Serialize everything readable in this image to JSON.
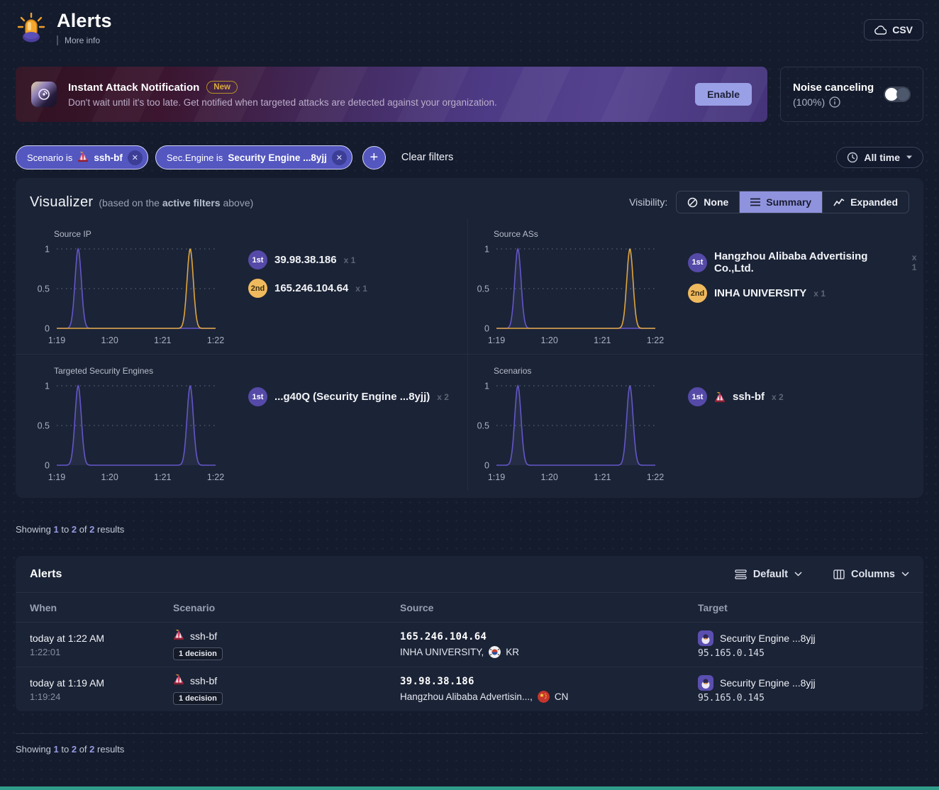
{
  "header": {
    "title": "Alerts",
    "more_info": "More info",
    "csv_button": "CSV"
  },
  "banner": {
    "title": "Instant Attack Notification",
    "badge": "New",
    "description": "Don't wait until it's too late. Get notified when targeted attacks are detected against your organization.",
    "enable_button": "Enable"
  },
  "noise_canceling": {
    "label": "Noise canceling",
    "value": "(100%)",
    "toggle_state": "off"
  },
  "filters": {
    "chips": [
      {
        "prefix": "Scenario is",
        "value": "ssh-bf",
        "scenario_emoji": "🎪",
        "remove": "✕"
      },
      {
        "prefix": "Sec.Engine is",
        "value": "Security Engine ...8yjj",
        "remove": "✕"
      }
    ],
    "add_button": "+",
    "clear_label": "Clear filters",
    "time_range": "All time"
  },
  "visualizer": {
    "title": "Visualizer",
    "subtitle_prefix": "(based on the ",
    "subtitle_bold": "active filters",
    "subtitle_suffix": " above)",
    "visibility_label": "Visibility:",
    "visibility_options": [
      "None",
      "Summary",
      "Expanded"
    ],
    "selected_visibility": "Summary"
  },
  "chart_data": [
    {
      "type": "line",
      "title": "Source IP",
      "x_ticks": [
        "1:19",
        "1:20",
        "1:21",
        "1:22"
      ],
      "y_ticks": [
        0,
        0.5,
        1
      ],
      "ylim": [
        0,
        1
      ],
      "series": [
        {
          "rank": "1st",
          "name": "39.98.38.186",
          "count": "x 1",
          "peaks": [
            0.135
          ],
          "peak_value": 1,
          "color": "#6456c8",
          "badge_bg": "#554aa8",
          "badge_fg": "#ffffff"
        },
        {
          "rank": "2nd",
          "name": "165.246.104.64",
          "count": "x 1",
          "peaks": [
            0.84
          ],
          "peak_value": 1,
          "color": "#dfa63c",
          "badge_bg": "#efba5d",
          "badge_fg": "#3a2d10"
        }
      ]
    },
    {
      "type": "line",
      "title": "Source ASs",
      "x_ticks": [
        "1:19",
        "1:20",
        "1:21",
        "1:22"
      ],
      "y_ticks": [
        0,
        0.5,
        1
      ],
      "ylim": [
        0,
        1
      ],
      "series": [
        {
          "rank": "1st",
          "name": "Hangzhou Alibaba Advertising Co.,Ltd.",
          "count": "x 1",
          "peaks": [
            0.135
          ],
          "peak_value": 1,
          "color": "#6456c8",
          "badge_bg": "#554aa8",
          "badge_fg": "#ffffff"
        },
        {
          "rank": "2nd",
          "name": "INHA UNIVERSITY",
          "count": "x 1",
          "peaks": [
            0.84
          ],
          "peak_value": 1,
          "color": "#dfa63c",
          "badge_bg": "#efba5d",
          "badge_fg": "#3a2d10"
        }
      ]
    },
    {
      "type": "line",
      "title": "Targeted Security Engines",
      "x_ticks": [
        "1:19",
        "1:20",
        "1:21",
        "1:22"
      ],
      "y_ticks": [
        0,
        0.5,
        1
      ],
      "ylim": [
        0,
        1
      ],
      "series": [
        {
          "rank": "1st",
          "name": "...g40Q (Security Engine ...8yjj)",
          "count": "x 2",
          "peaks": [
            0.135,
            0.84
          ],
          "peak_value": 1,
          "color": "#6456c8",
          "badge_bg": "#554aa8",
          "badge_fg": "#ffffff"
        }
      ]
    },
    {
      "type": "line",
      "title": "Scenarios",
      "x_ticks": [
        "1:19",
        "1:20",
        "1:21",
        "1:22"
      ],
      "y_ticks": [
        0,
        0.5,
        1
      ],
      "ylim": [
        0,
        1
      ],
      "series": [
        {
          "rank": "1st",
          "name": "ssh-bf",
          "count": "x 2",
          "has_emoji": true,
          "scenario_emoji": "🎪",
          "peaks": [
            0.135,
            0.84
          ],
          "peak_value": 1,
          "color": "#6456c8",
          "badge_bg": "#554aa8",
          "badge_fg": "#ffffff"
        }
      ]
    }
  ],
  "results_top": {
    "showing": "Showing",
    "from": "1",
    "to_word": "to",
    "to": "2",
    "of_word": "of",
    "total": "2",
    "suffix": "results"
  },
  "results_bottom": {
    "showing": "Showing",
    "from": "1",
    "to_word": "to",
    "to": "2",
    "of_word": "of",
    "total": "2",
    "suffix": "results"
  },
  "table": {
    "title": "Alerts",
    "density_control": "Default",
    "columns_control": "Columns",
    "headers": [
      "When",
      "Scenario",
      "Source",
      "Target"
    ],
    "rows": [
      {
        "when_primary": "today at 1:22 AM",
        "when_secondary": "1:22:01",
        "scenario": "ssh-bf",
        "scenario_emoji": "🎪",
        "decisions": "1 decision",
        "source_ip": "165.246.104.64",
        "source_org": "INHA UNIVERSITY,",
        "source_country": "KR",
        "target_name": "Security Engine ...8yjj",
        "target_ip": "95.165.0.145"
      },
      {
        "when_primary": "today at 1:19 AM",
        "when_secondary": "1:19:24",
        "scenario": "ssh-bf",
        "scenario_emoji": "🎪",
        "decisions": "1 decision",
        "source_ip": "39.98.38.186",
        "source_org": "Hangzhou Alibaba Advertisin...,",
        "source_country": "CN",
        "target_name": "Security Engine ...8yjj",
        "target_ip": "95.165.0.145"
      }
    ]
  },
  "icons": {
    "header": "siren-icon",
    "csv": "cloud-icon",
    "banner": "notification-icon",
    "noise_info": "info-icon",
    "chip_remove": "close-icon",
    "add_filter": "plus-icon",
    "time_range": "clock-icon",
    "visibility_none": "slash-circle-icon",
    "visibility_summary": "list-icon",
    "visibility_expanded": "line-chart-icon",
    "density": "rows-icon",
    "columns": "columns-icon",
    "scenario": "circus-tent-emoji-icon",
    "country_kr": "kr-flag-icon",
    "country_cn": "cn-flag-icon",
    "target": "security-engine-avatar"
  },
  "colors": {
    "background": "#141b2d",
    "card": "#1b2336",
    "accent_purple": "#5457bf",
    "chart_purple": "#6456c8",
    "chart_orange": "#dfa63c",
    "badge_first": "#554aa8",
    "badge_second": "#efba5d",
    "enable_button": "#9aa0e6",
    "new_badge": "#dcab3f",
    "footer_accent": "#2f9d8a"
  }
}
